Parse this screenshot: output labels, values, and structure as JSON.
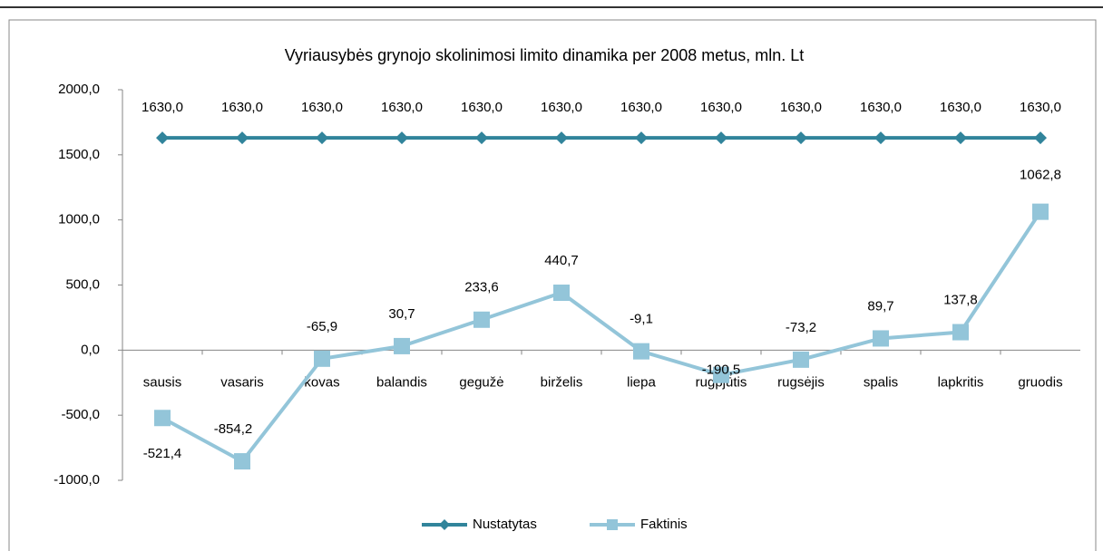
{
  "chart_data": {
    "type": "line",
    "title": "Vyriausybės grynojo skolinimosi limito dinamika per 2008 metus, mln. Lt",
    "categories": [
      "sausis",
      "vasaris",
      "kovas",
      "balandis",
      "gegužė",
      "birželis",
      "liepa",
      "rugpjūtis",
      "rugsėjis",
      "spalis",
      "lapkritis",
      "gruodis"
    ],
    "series": [
      {
        "name": "Nustatytas",
        "color": "#31849b",
        "marker": "diamond",
        "values": [
          1630,
          1630,
          1630,
          1630,
          1630,
          1630,
          1630,
          1630,
          1630,
          1630,
          1630,
          1630
        ],
        "value_labels": [
          "1630,0",
          "1630,0",
          "1630,0",
          "1630,0",
          "1630,0",
          "1630,0",
          "1630,0",
          "1630,0",
          "1630,0",
          "1630,0",
          "1630,0",
          "1630,0"
        ]
      },
      {
        "name": "Faktinis",
        "color": "#93c5d9",
        "marker": "square",
        "values": [
          -521.4,
          -854.2,
          -65.9,
          30.7,
          233.6,
          440.7,
          -9.1,
          -190.5,
          -73.2,
          89.7,
          137.8,
          1062.8
        ],
        "value_labels": [
          "-521,4",
          "-854,2",
          "-65,9",
          "30,7",
          "233,6",
          "440,7",
          "-9,1",
          "-190,5",
          "-73,2",
          "89,7",
          "137,8",
          "1062,8"
        ]
      }
    ],
    "ylim": [
      -1000,
      2000
    ],
    "yticks": [
      {
        "value": -1000,
        "label": "-1000,0"
      },
      {
        "value": -500,
        "label": "-500,0"
      },
      {
        "value": 0,
        "label": "0,0"
      },
      {
        "value": 500,
        "label": "500,0"
      },
      {
        "value": 1000,
        "label": "1000,0"
      },
      {
        "value": 1500,
        "label": "1500,0"
      },
      {
        "value": 2000,
        "label": "2000,0"
      }
    ],
    "grid": false,
    "legend": "bottom"
  }
}
